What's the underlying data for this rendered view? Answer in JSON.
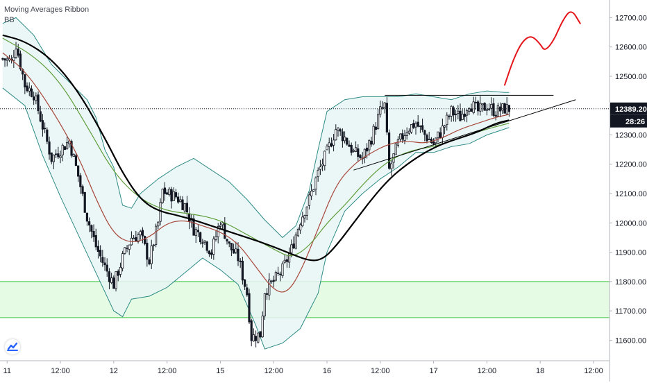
{
  "legend": {
    "line1": "Moving Averages Ribbon",
    "line2": "BB"
  },
  "price_tag": {
    "value": "12389.20",
    "countdown": "28:26"
  },
  "colors": {
    "candle": "#131722",
    "band_line": "#2e8b85",
    "band_fill": "#e8f5f4",
    "ma_red": "#a8483c",
    "ma_green": "#5f9e3a",
    "ma_black": "#000000",
    "zone_fill": "#e6fbe4",
    "zone_line": "#3cc43c",
    "projection": "#e4161b",
    "price_tag_bg": "#131722"
  },
  "chart_data": {
    "type": "candlestick",
    "title": "",
    "indicators": [
      "Moving Averages Ribbon",
      "BB"
    ],
    "ylim": [
      11530,
      12760
    ],
    "yticks": [
      11600,
      11700,
      11800,
      11900,
      12000,
      12100,
      12200,
      12300,
      12400,
      12500,
      12600,
      12700
    ],
    "ytick_labels": [
      "11600.00",
      "11700.00",
      "11800.00",
      "11900.00",
      "12000.00",
      "12100.00",
      "12200.00",
      "12300.00",
      "12400.00",
      "12500.00",
      "12600.00",
      "12700.00"
    ],
    "xticks": [
      {
        "label": "11",
        "t": 0
      },
      {
        "label": "12:00",
        "t": 12
      },
      {
        "label": "12",
        "t": 24
      },
      {
        "label": "12:00",
        "t": 36
      },
      {
        "label": "15",
        "t": 48
      },
      {
        "label": "12:00",
        "t": 60
      },
      {
        "label": "16",
        "t": 72
      },
      {
        "label": "12:00",
        "t": 84
      },
      {
        "label": "17",
        "t": 96
      },
      {
        "label": "12:00",
        "t": 108
      },
      {
        "label": "18",
        "t": 120
      },
      {
        "label": "12:00",
        "t": 132
      }
    ],
    "x_range": [
      -1.6,
      135.6
    ],
    "current_price": 12389.2,
    "support_zone": [
      11677,
      11800
    ],
    "price_path": [
      [
        -1,
        12560
      ],
      [
        1,
        12550
      ],
      [
        2,
        12610
      ],
      [
        4,
        12470
      ],
      [
        6,
        12440
      ],
      [
        8,
        12330
      ],
      [
        10,
        12220
      ],
      [
        12,
        12250
      ],
      [
        14,
        12280
      ],
      [
        16,
        12160
      ],
      [
        18,
        12020
      ],
      [
        20,
        11920
      ],
      [
        22,
        11850
      ],
      [
        24,
        11790
      ],
      [
        26,
        11880
      ],
      [
        28,
        11950
      ],
      [
        30,
        11960
      ],
      [
        32,
        11870
      ],
      [
        34,
        12000
      ],
      [
        35,
        12110
      ],
      [
        36,
        12100
      ],
      [
        38,
        12090
      ],
      [
        40,
        12060
      ],
      [
        42,
        11980
      ],
      [
        44,
        11950
      ],
      [
        46,
        11900
      ],
      [
        48,
        12010
      ],
      [
        50,
        11920
      ],
      [
        52,
        11880
      ],
      [
        54,
        11760
      ],
      [
        55,
        11610
      ],
      [
        57,
        11620
      ],
      [
        58,
        11770
      ],
      [
        60,
        11800
      ],
      [
        62,
        11840
      ],
      [
        64,
        11910
      ],
      [
        66,
        12010
      ],
      [
        68,
        12080
      ],
      [
        70,
        12170
      ],
      [
        72,
        12240
      ],
      [
        74,
        12320
      ],
      [
        76,
        12290
      ],
      [
        78,
        12240
      ],
      [
        80,
        12220
      ],
      [
        82,
        12290
      ],
      [
        84,
        12380
      ],
      [
        85,
        12400
      ],
      [
        86,
        12180
      ],
      [
        88,
        12270
      ],
      [
        90,
        12320
      ],
      [
        92,
        12340
      ],
      [
        94,
        12300
      ],
      [
        96,
        12270
      ],
      [
        98,
        12320
      ],
      [
        100,
        12380
      ],
      [
        102,
        12360
      ],
      [
        104,
        12410
      ],
      [
        106,
        12380
      ],
      [
        108,
        12400
      ],
      [
        110,
        12380
      ],
      [
        112,
        12390
      ],
      [
        113,
        12389
      ]
    ],
    "ma_red": [
      [
        -1,
        12580
      ],
      [
        4,
        12520
      ],
      [
        10,
        12390
      ],
      [
        16,
        12230
      ],
      [
        20,
        12080
      ],
      [
        24,
        11960
      ],
      [
        28,
        11930
      ],
      [
        32,
        11950
      ],
      [
        36,
        12000
      ],
      [
        40,
        12010
      ],
      [
        44,
        11990
      ],
      [
        48,
        11970
      ],
      [
        52,
        11930
      ],
      [
        56,
        11850
      ],
      [
        60,
        11770
      ],
      [
        63,
        11760
      ],
      [
        66,
        11830
      ],
      [
        70,
        11980
      ],
      [
        74,
        12130
      ],
      [
        78,
        12200
      ],
      [
        82,
        12240
      ],
      [
        86,
        12270
      ],
      [
        90,
        12280
      ],
      [
        94,
        12270
      ],
      [
        98,
        12290
      ],
      [
        102,
        12320
      ],
      [
        106,
        12340
      ],
      [
        110,
        12360
      ],
      [
        113,
        12370
      ]
    ],
    "ma_green": [
      [
        -1,
        12630
      ],
      [
        6,
        12570
      ],
      [
        12,
        12480
      ],
      [
        18,
        12330
      ],
      [
        24,
        12170
      ],
      [
        30,
        12080
      ],
      [
        36,
        12040
      ],
      [
        42,
        12030
      ],
      [
        48,
        12010
      ],
      [
        54,
        11960
      ],
      [
        60,
        11910
      ],
      [
        64,
        11880
      ],
      [
        68,
        11920
      ],
      [
        72,
        12000
      ],
      [
        76,
        12060
      ],
      [
        80,
        12130
      ],
      [
        84,
        12190
      ],
      [
        88,
        12230
      ],
      [
        92,
        12250
      ],
      [
        96,
        12260
      ],
      [
        100,
        12280
      ],
      [
        104,
        12300
      ],
      [
        108,
        12320
      ],
      [
        113,
        12340
      ]
    ],
    "ma_black": [
      [
        -1,
        12640
      ],
      [
        4,
        12620
      ],
      [
        10,
        12560
      ],
      [
        16,
        12450
      ],
      [
        22,
        12290
      ],
      [
        26,
        12170
      ],
      [
        30,
        12080
      ],
      [
        34,
        12040
      ],
      [
        40,
        12020
      ],
      [
        46,
        11990
      ],
      [
        52,
        11960
      ],
      [
        58,
        11930
      ],
      [
        63,
        11900
      ],
      [
        68,
        11870
      ],
      [
        71,
        11875
      ],
      [
        74,
        11920
      ],
      [
        78,
        12000
      ],
      [
        82,
        12080
      ],
      [
        86,
        12150
      ],
      [
        90,
        12200
      ],
      [
        94,
        12240
      ],
      [
        98,
        12270
      ],
      [
        102,
        12290
      ],
      [
        106,
        12310
      ],
      [
        110,
        12340
      ],
      [
        113,
        12350
      ]
    ],
    "bb_upper": [
      [
        -1,
        12680
      ],
      [
        2,
        12700
      ],
      [
        6,
        12640
      ],
      [
        10,
        12540
      ],
      [
        14,
        12480
      ],
      [
        18,
        12420
      ],
      [
        20,
        12360
      ],
      [
        22,
        12250
      ],
      [
        24,
        12190
      ],
      [
        26,
        12060
      ],
      [
        28,
        12050
      ],
      [
        30,
        12100
      ],
      [
        34,
        12150
      ],
      [
        38,
        12190
      ],
      [
        42,
        12220
      ],
      [
        46,
        12180
      ],
      [
        50,
        12140
      ],
      [
        54,
        12080
      ],
      [
        58,
        12010
      ],
      [
        62,
        11950
      ],
      [
        65,
        11990
      ],
      [
        68,
        12110
      ],
      [
        70,
        12250
      ],
      [
        72,
        12380
      ],
      [
        76,
        12420
      ],
      [
        80,
        12430
      ],
      [
        84,
        12430
      ],
      [
        88,
        12430
      ],
      [
        92,
        12440
      ],
      [
        96,
        12430
      ],
      [
        100,
        12420
      ],
      [
        104,
        12440
      ],
      [
        108,
        12450
      ],
      [
        112,
        12445
      ],
      [
        113,
        12445
      ]
    ],
    "bb_lower": [
      [
        -1,
        12460
      ],
      [
        4,
        12400
      ],
      [
        8,
        12230
      ],
      [
        12,
        12090
      ],
      [
        16,
        11960
      ],
      [
        20,
        11830
      ],
      [
        24,
        11700
      ],
      [
        26,
        11680
      ],
      [
        28,
        11740
      ],
      [
        32,
        11750
      ],
      [
        36,
        11780
      ],
      [
        40,
        11830
      ],
      [
        44,
        11880
      ],
      [
        48,
        11840
      ],
      [
        52,
        11790
      ],
      [
        56,
        11650
      ],
      [
        58,
        11570
      ],
      [
        62,
        11590
      ],
      [
        66,
        11640
      ],
      [
        68,
        11700
      ],
      [
        70,
        11760
      ],
      [
        72,
        11900
      ],
      [
        76,
        12040
      ],
      [
        80,
        12100
      ],
      [
        84,
        12150
      ],
      [
        88,
        12190
      ],
      [
        92,
        12240
      ],
      [
        96,
        12240
      ],
      [
        100,
        12260
      ],
      [
        104,
        12270
      ],
      [
        108,
        12300
      ],
      [
        112,
        12320
      ],
      [
        113,
        12325
      ]
    ],
    "drawings": {
      "resistance_line": [
        [
          85,
          12435
        ],
        [
          123,
          12435
        ]
      ],
      "ascending_trendline": [
        [
          78,
          12180
        ],
        [
          128,
          12420
        ]
      ],
      "projection_path": [
        [
          112,
          12470
        ],
        [
          114,
          12560
        ],
        [
          116,
          12620
        ],
        [
          118,
          12640
        ],
        [
          120,
          12610
        ],
        [
          121,
          12585
        ],
        [
          123,
          12620
        ],
        [
          125,
          12690
        ],
        [
          127,
          12730
        ],
        [
          129,
          12680
        ]
      ]
    }
  }
}
